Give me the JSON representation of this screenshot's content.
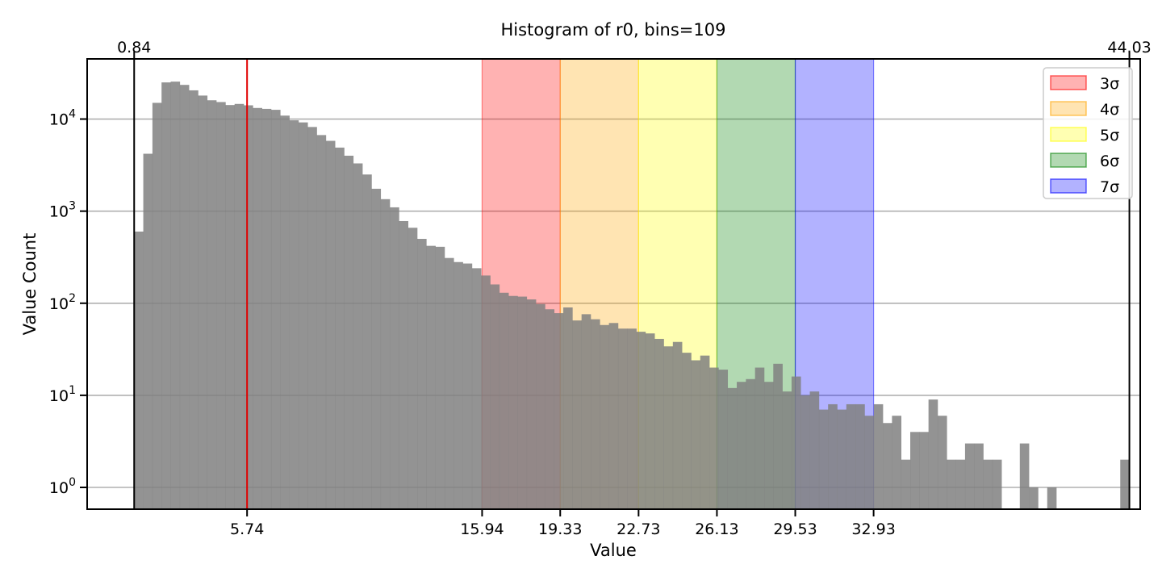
{
  "chart_data": {
    "type": "bar",
    "title": "Histogram of r0, bins=109",
    "xlabel": "Value",
    "ylabel": "Value Count",
    "y_scale": "log",
    "xlim": [
      -1.2,
      44.5
    ],
    "ylim": [
      0.58,
      45000
    ],
    "x_tick_labels": [
      {
        "value": 5.74,
        "label": "5.74"
      },
      {
        "value": 15.94,
        "label": "15.94"
      },
      {
        "value": 19.33,
        "label": "19.33"
      },
      {
        "value": 22.73,
        "label": "22.73"
      },
      {
        "value": 26.13,
        "label": "26.13"
      },
      {
        "value": 29.53,
        "label": "29.53"
      },
      {
        "value": 32.93,
        "label": "32.93"
      }
    ],
    "y_ticks": [
      {
        "value": 1,
        "base": "10",
        "exp": "0"
      },
      {
        "value": 10,
        "base": "10",
        "exp": "1"
      },
      {
        "value": 100,
        "base": "10",
        "exp": "2"
      },
      {
        "value": 1000,
        "base": "10",
        "exp": "3"
      },
      {
        "value": 10000,
        "base": "10",
        "exp": "4"
      }
    ],
    "grid": "horizontal",
    "min_line": {
      "value": 0.84,
      "label": "0.84",
      "color": "#000000"
    },
    "max_line": {
      "value": 44.03,
      "label": "44.03",
      "color": "#000000"
    },
    "mean_line": {
      "value": 5.74,
      "color": "#e00000"
    },
    "bins": {
      "start": 0.84,
      "end": 44.03,
      "count": 109,
      "counts": [
        600,
        4200,
        15000,
        25000,
        25500,
        23500,
        20500,
        18000,
        16000,
        15300,
        14200,
        14600,
        14100,
        13200,
        12900,
        12600,
        10900,
        9700,
        9200,
        8200,
        6700,
        5800,
        4900,
        4000,
        3300,
        2500,
        1750,
        1350,
        1100,
        780,
        660,
        500,
        420,
        410,
        310,
        280,
        270,
        240,
        200,
        160,
        130,
        120,
        118,
        110,
        98,
        86,
        78,
        90,
        65,
        76,
        67,
        58,
        61,
        53,
        53,
        49,
        47,
        41,
        34,
        38,
        29,
        24,
        27,
        20,
        19,
        12,
        14,
        15,
        20,
        14,
        22,
        11,
        16,
        10,
        11,
        7,
        8,
        7,
        8,
        8,
        6,
        8,
        5,
        6,
        2,
        4,
        4,
        9,
        6,
        2,
        2,
        3,
        3,
        2,
        2,
        0,
        0,
        3,
        1,
        0,
        1,
        0,
        0,
        0,
        0,
        0,
        0,
        0,
        2
      ]
    },
    "sigma_bands": [
      {
        "name": "3σ",
        "from": 15.94,
        "to": 19.33,
        "color": "#ff0000"
      },
      {
        "name": "4σ",
        "from": 19.33,
        "to": 22.73,
        "color": "#ffa500"
      },
      {
        "name": "5σ",
        "from": 22.73,
        "to": 26.13,
        "color": "#ffff00"
      },
      {
        "name": "6σ",
        "from": 26.13,
        "to": 29.53,
        "color": "#008000"
      },
      {
        "name": "7σ",
        "from": 29.53,
        "to": 32.93,
        "color": "#0000ff"
      }
    ],
    "legend_position": "top-right",
    "bar_color": "#808080"
  }
}
